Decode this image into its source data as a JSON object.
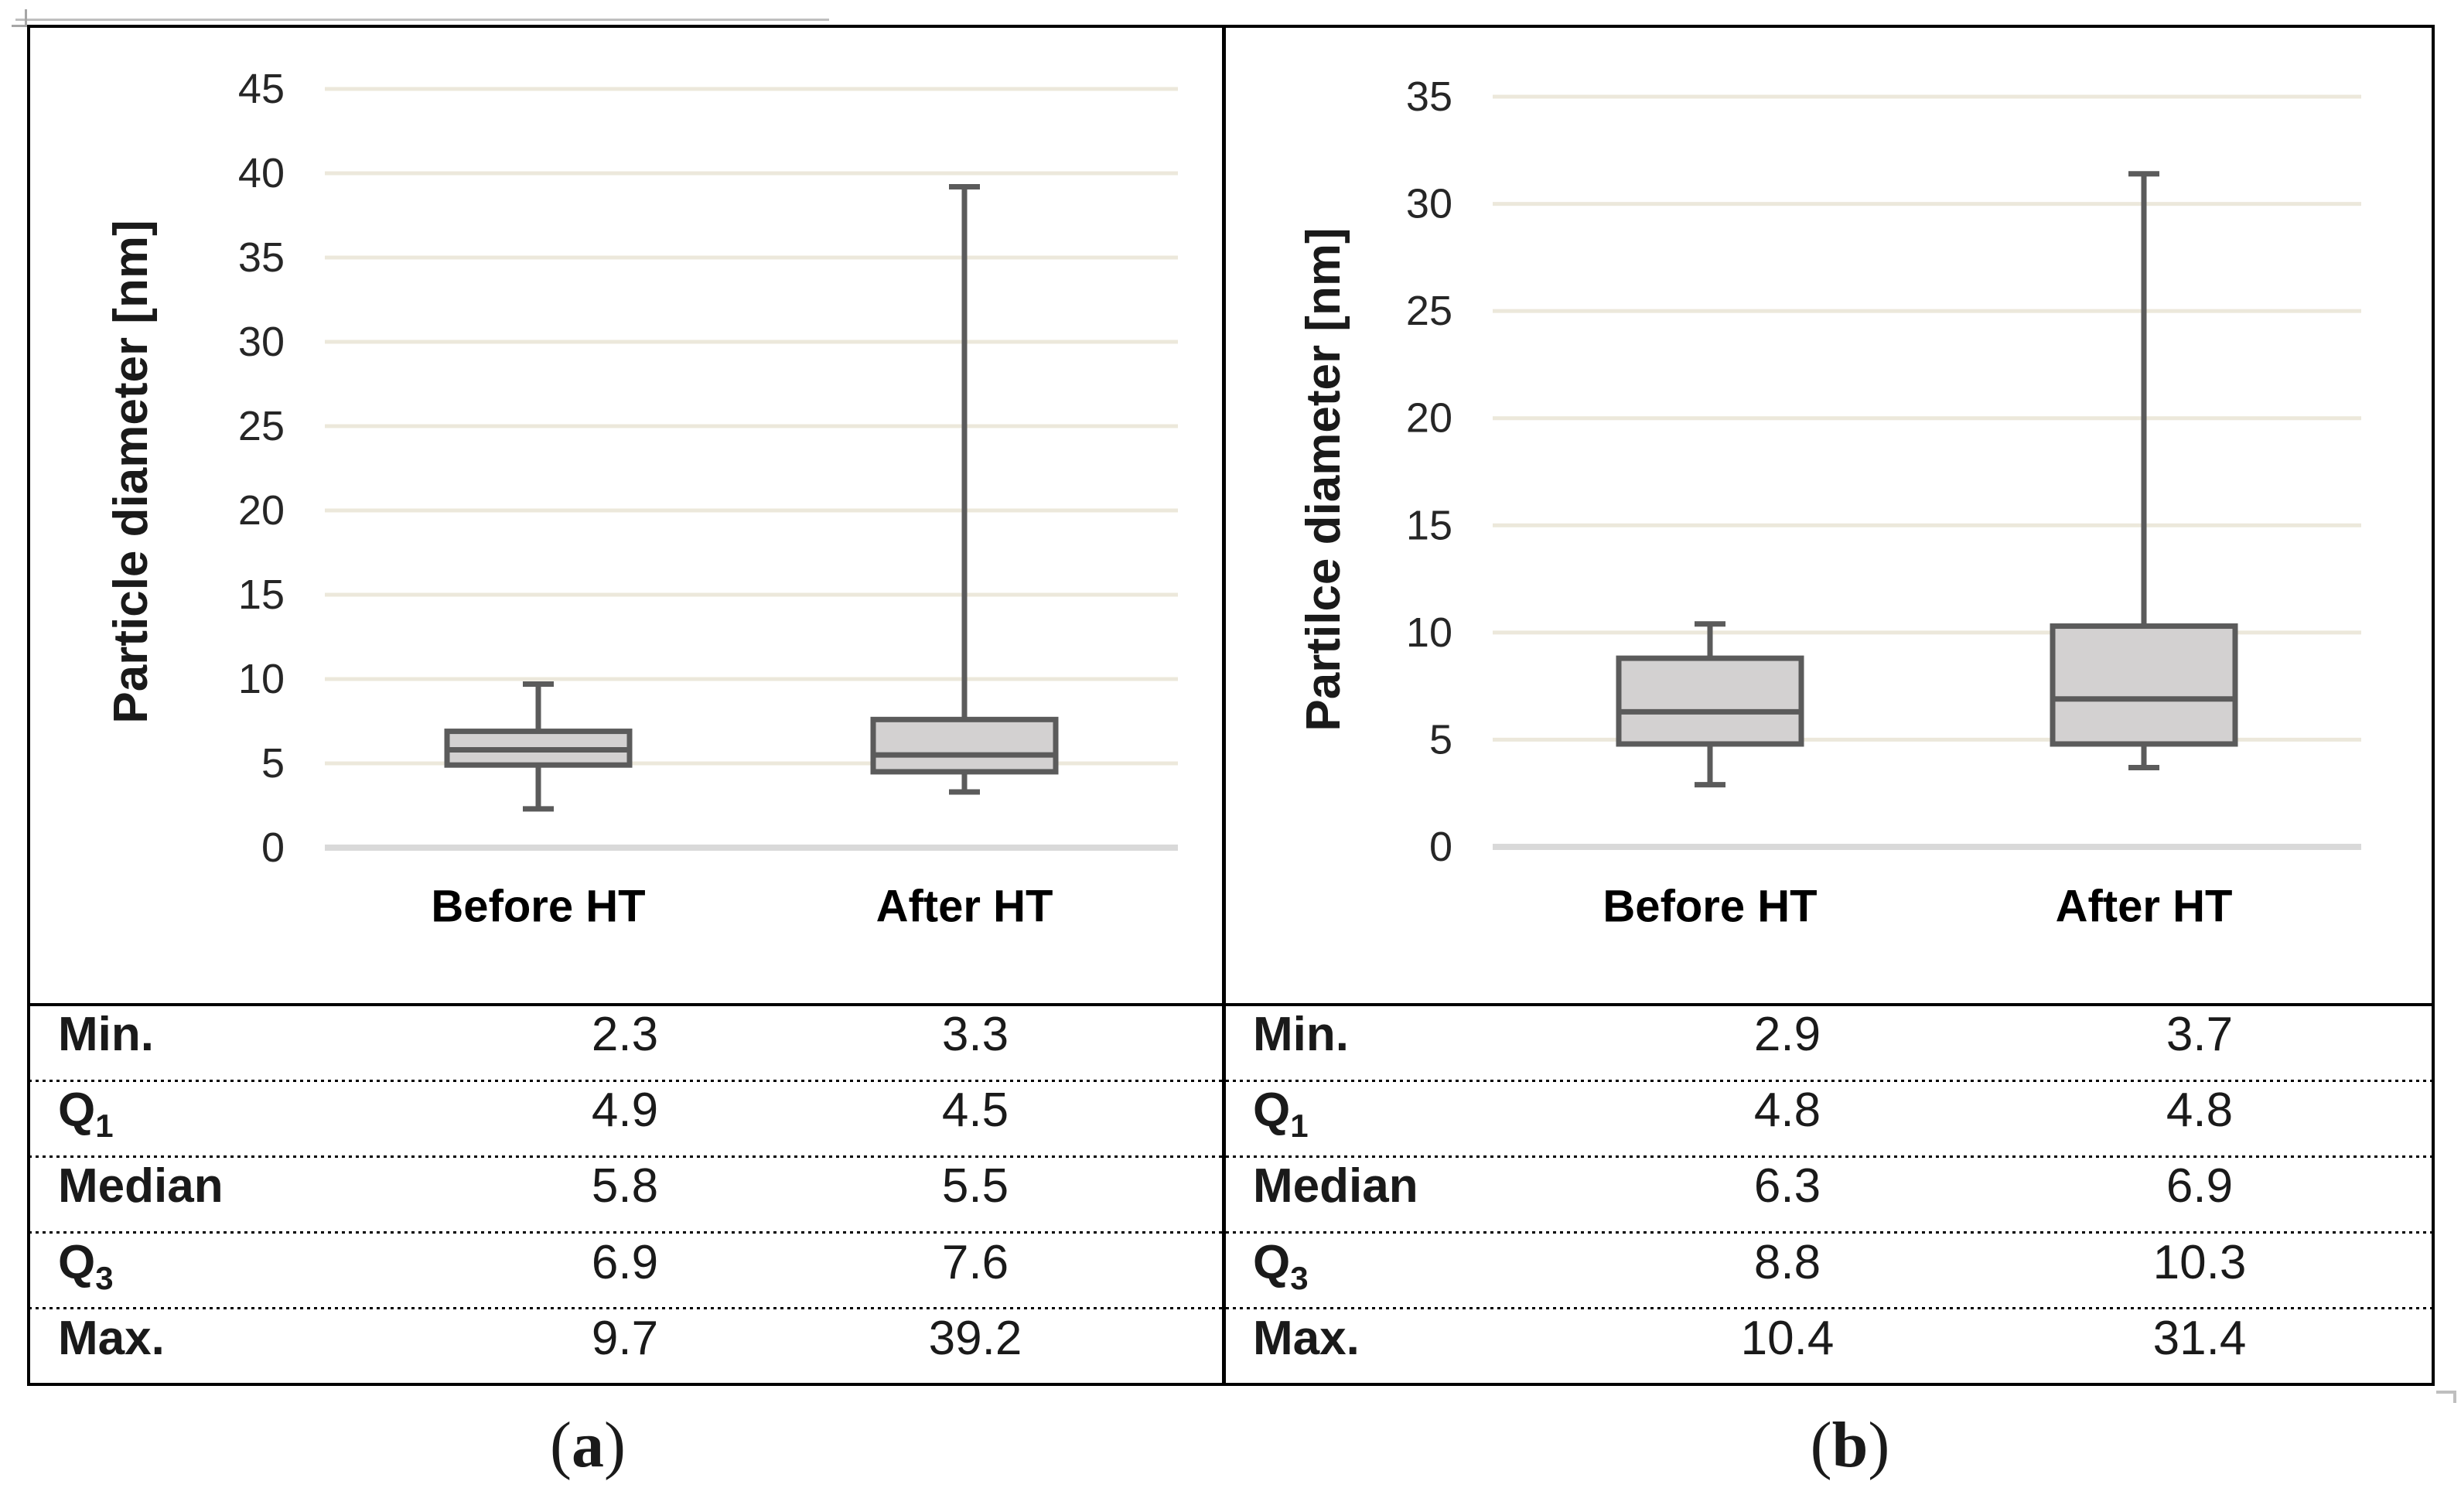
{
  "chart_data": [
    {
      "type": "box",
      "panel": "a",
      "ylabel": "Particle diameter [nm]",
      "ylim": [
        0,
        45
      ],
      "ytick_step": 5,
      "grid": true,
      "legend": "none",
      "categories": [
        "Before HT",
        "After HT"
      ],
      "series": [
        {
          "name": "Before HT",
          "min": 2.3,
          "q1": 4.9,
          "median": 5.8,
          "q3": 6.9,
          "max": 9.7
        },
        {
          "name": "After HT",
          "min": 3.3,
          "q1": 4.5,
          "median": 5.5,
          "q3": 7.6,
          "max": 39.2
        }
      ],
      "table": {
        "rows": [
          {
            "label": "Min.",
            "sub": "",
            "values": [
              "2.3",
              "3.3"
            ]
          },
          {
            "label": "Q",
            "sub": "1",
            "values": [
              "4.9",
              "4.5"
            ]
          },
          {
            "label": "Median",
            "sub": "",
            "values": [
              "5.8",
              "5.5"
            ]
          },
          {
            "label": "Q",
            "sub": "3",
            "values": [
              "6.9",
              "7.6"
            ]
          },
          {
            "label": "Max.",
            "sub": "",
            "values": [
              "9.7",
              "39.2"
            ]
          }
        ]
      },
      "caption": {
        "open": "(",
        "letter": "a",
        "close": ")"
      }
    },
    {
      "type": "box",
      "panel": "b",
      "ylabel": "Partilce diameter [nm]",
      "ylim": [
        0,
        35
      ],
      "ytick_step": 5,
      "grid": true,
      "legend": "none",
      "categories": [
        "Before HT",
        "After HT"
      ],
      "series": [
        {
          "name": "Before HT",
          "min": 2.9,
          "q1": 4.8,
          "median": 6.3,
          "q3": 8.8,
          "max": 10.4
        },
        {
          "name": "After HT",
          "min": 3.7,
          "q1": 4.8,
          "median": 6.9,
          "q3": 10.3,
          "max": 31.4
        }
      ],
      "table": {
        "rows": [
          {
            "label": "Min.",
            "sub": "",
            "values": [
              "2.9",
              "3.7"
            ]
          },
          {
            "label": "Q",
            "sub": "1",
            "values": [
              "4.8",
              "4.8"
            ]
          },
          {
            "label": "Median",
            "sub": "",
            "values": [
              "6.3",
              "6.9"
            ]
          },
          {
            "label": "Q",
            "sub": "3",
            "values": [
              "8.8",
              "10.3"
            ]
          },
          {
            "label": "Max.",
            "sub": "",
            "values": [
              "10.4",
              "31.4"
            ]
          }
        ]
      },
      "caption": {
        "open": "(",
        "letter": "b",
        "close": ")"
      }
    }
  ],
  "colors": {
    "gridline": "#ece8db",
    "zero_line": "#d9d9d9",
    "box_fill": "#d3d1d1",
    "box_stroke": "#5b5b5b",
    "tick_text": "#262626",
    "text": "#1a1a1a",
    "border": "#000000",
    "artifact_gray": "#bfbfbf"
  }
}
